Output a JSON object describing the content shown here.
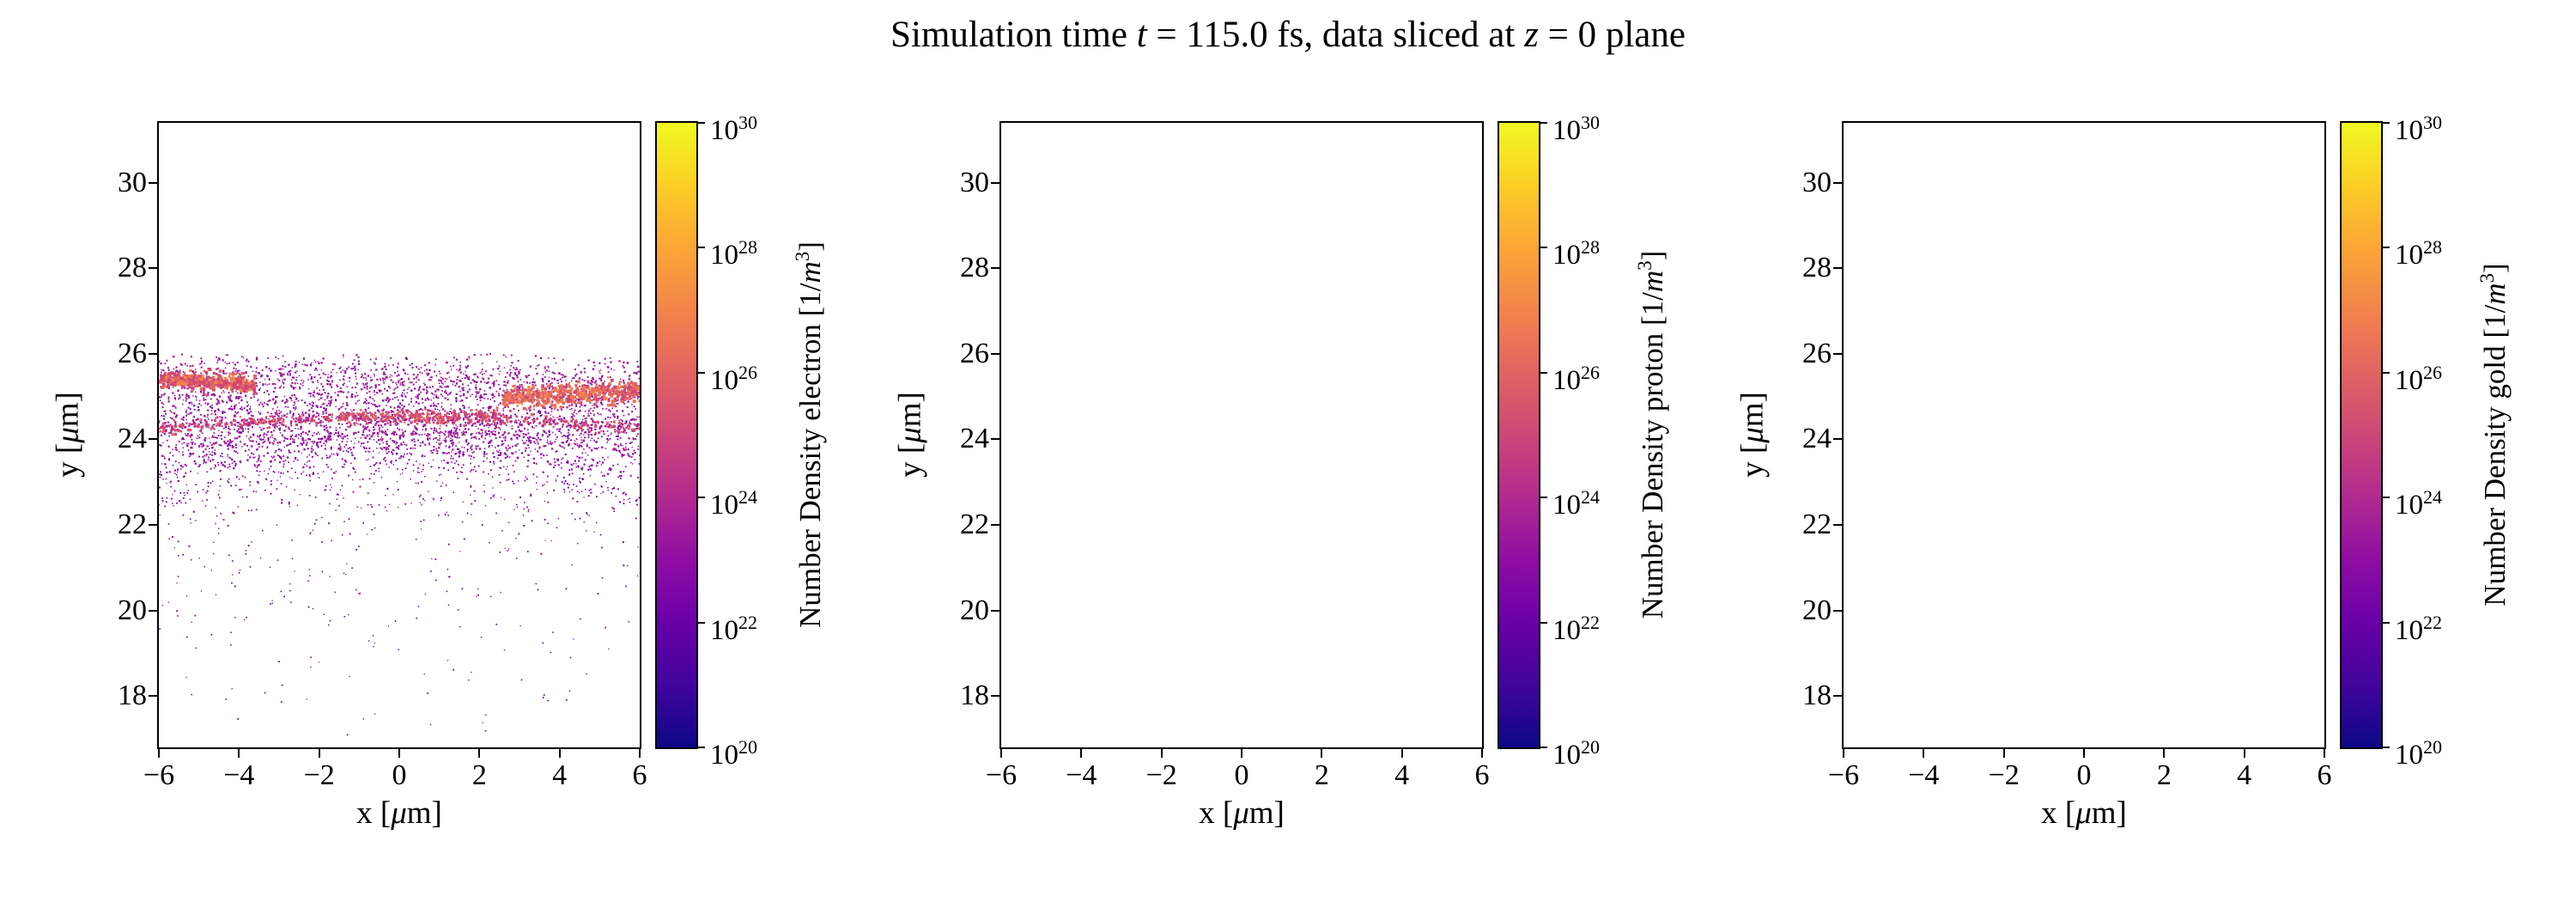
{
  "title": {
    "pre": "Simulation time ",
    "t_var": "t",
    "mid": " = 115.0 fs, data sliced at ",
    "z_var": "z",
    "post": " = 0 plane"
  },
  "chart_data": [
    {
      "type": "scatter",
      "species": "electron",
      "xlabel_parts": {
        "pre": "x [",
        "mu": "μ",
        "post": "m]"
      },
      "ylabel_parts": {
        "pre": "y [",
        "mu": "μ",
        "post": "m]"
      },
      "xlim": [
        -6,
        6
      ],
      "ylim": [
        16.8,
        31.4
      ],
      "xticks": [
        -6,
        -4,
        -2,
        0,
        2,
        4,
        6
      ],
      "yticks": [
        18,
        20,
        22,
        24,
        26,
        28,
        30
      ],
      "grid": false,
      "colorbar": {
        "label_pre": "Number Density electron [1/",
        "label_m": "m",
        "label_sup": "3",
        "label_post": "]",
        "scale": "log",
        "min_exp": 20,
        "max_exp": 30,
        "tick_exps": [
          20,
          22,
          24,
          26,
          28,
          30
        ],
        "colormap": "plasma",
        "stops": [
          {
            "pos": 0.0,
            "color": "#0d0887"
          },
          {
            "pos": 0.1,
            "color": "#41049d"
          },
          {
            "pos": 0.2,
            "color": "#6a00a8"
          },
          {
            "pos": 0.3,
            "color": "#8f0da4"
          },
          {
            "pos": 0.4,
            "color": "#b12a90"
          },
          {
            "pos": 0.5,
            "color": "#cc4778"
          },
          {
            "pos": 0.6,
            "color": "#e16462"
          },
          {
            "pos": 0.7,
            "color": "#f2844b"
          },
          {
            "pos": 0.8,
            "color": "#fca636"
          },
          {
            "pos": 0.9,
            "color": "#fcce25"
          },
          {
            "pos": 1.0,
            "color": "#f0f921"
          }
        ]
      },
      "scatter": {
        "seed": 42,
        "description": "Thin electron density sheet: dense filamentary band y=23.5-26 um across full x range with bright (1e24-1e26) streaks near y=25.3 (x<-3.6), y=25.05 (x>2.6) and y=24.5; sparse purple points (1e20-1e22) scattered down to y=17",
        "bands": [
          {
            "kind": "gauss",
            "count": 2000,
            "xr": [
              -6,
              6
            ],
            "yc": 24.55,
            "ys": 0.5,
            "yclip": [
              23.2,
              26.0
            ],
            "colors": [
              "#7e03a8",
              "#8f0da4",
              "#9c179e",
              "#b12a90"
            ],
            "sz": [
              1.4,
              2.4
            ]
          },
          {
            "kind": "gauss",
            "count": 900,
            "xr": [
              -6,
              6
            ],
            "yc": 25.4,
            "ys": 0.33,
            "yclip": [
              24.9,
              26.0
            ],
            "colors": [
              "#8f0da4",
              "#9c179e",
              "#b12a90"
            ],
            "sz": [
              1.4,
              2.4
            ]
          },
          {
            "kind": "curve",
            "count": 480,
            "xr": [
              -6,
              6
            ],
            "y0": 24.5,
            "a": -0.25,
            "jit": 0.07,
            "colors": [
              "#cc4778",
              "#d6456c",
              "#b12a90",
              "#e16462"
            ],
            "sz": [
              2,
              3.4
            ]
          },
          {
            "kind": "curve",
            "count": 260,
            "xr": [
              -6,
              6
            ],
            "y0": 24.15,
            "a": -0.5,
            "jit": 0.08,
            "colors": [
              "#9c179e",
              "#b12a90",
              "#a62098"
            ],
            "sz": [
              1.5,
              2.5
            ]
          },
          {
            "kind": "curve",
            "count": 220,
            "xr": [
              -6,
              6
            ],
            "y0": 23.8,
            "a": -0.7,
            "jit": 0.1,
            "colors": [
              "#8f0da4",
              "#9c179e"
            ],
            "sz": [
              1.5,
              2.4
            ]
          },
          {
            "kind": "curve",
            "count": 160,
            "xr": [
              -6,
              6
            ],
            "y0": 23.4,
            "a": -0.9,
            "jit": 0.12,
            "colors": [
              "#7e03a8",
              "#8f0da4"
            ],
            "sz": [
              1.4,
              2
            ]
          },
          {
            "kind": "seg",
            "count": 430,
            "xr": [
              -6,
              -3.6
            ],
            "yc": 25.35,
            "ys": 0.09,
            "slope": -0.06,
            "colors": [
              "#e16462",
              "#d6456c",
              "#cc4778",
              "#f2844b"
            ],
            "sz": [
              2.4,
              4
            ]
          },
          {
            "kind": "seg",
            "count": 520,
            "xr": [
              2.6,
              6
            ],
            "yc": 25.05,
            "ys": 0.12,
            "slope": 0.05,
            "colors": [
              "#e16462",
              "#f2844b",
              "#cc4778",
              "#e97158"
            ],
            "sz": [
              2.4,
              4
            ]
          },
          {
            "kind": "seg",
            "count": 200,
            "xr": [
              -1.5,
              2.6
            ],
            "yc": 24.55,
            "ys": 0.07,
            "colors": [
              "#cc4778",
              "#e16462"
            ],
            "sz": [
              2,
              3
            ]
          },
          {
            "kind": "uniform",
            "count": 700,
            "xr": [
              -6,
              6
            ],
            "yr": [
              21.0,
              24.2
            ],
            "bias": 2.2,
            "colors": [
              "#7e03a8",
              "#8f0da4",
              "#6a00a8"
            ],
            "sz": [
              1.2,
              2
            ]
          },
          {
            "kind": "uniform",
            "count": 120,
            "xr": [
              -6,
              6
            ],
            "yr": [
              19.0,
              21.5
            ],
            "bias": 1.5,
            "colors": [
              "#6a00a8",
              "#7e03a8"
            ],
            "sz": [
              1.2,
              1.8
            ]
          },
          {
            "kind": "uniform",
            "count": 40,
            "xr": [
              -5.5,
              5.5
            ],
            "yr": [
              17.0,
              19.2
            ],
            "bias": 1.0,
            "colors": [
              "#6a00a8",
              "#7e03a8"
            ],
            "sz": [
              1.2,
              1.8
            ]
          }
        ]
      }
    },
    {
      "type": "scatter",
      "species": "proton",
      "xlabel_parts": {
        "pre": "x [",
        "mu": "μ",
        "post": "m]"
      },
      "ylabel_parts": {
        "pre": "y [",
        "mu": "μ",
        "post": "m]"
      },
      "xlim": [
        -6,
        6
      ],
      "ylim": [
        16.8,
        31.4
      ],
      "xticks": [
        -6,
        -4,
        -2,
        0,
        2,
        4,
        6
      ],
      "yticks": [
        18,
        20,
        22,
        24,
        26,
        28,
        30
      ],
      "grid": false,
      "colorbar": {
        "label_pre": "Number Density proton [1/",
        "label_m": "m",
        "label_sup": "3",
        "label_post": "]",
        "scale": "log",
        "min_exp": 20,
        "max_exp": 30,
        "tick_exps": [
          20,
          22,
          24,
          26,
          28,
          30
        ],
        "colormap": "plasma",
        "stops": [
          {
            "pos": 0.0,
            "color": "#0d0887"
          },
          {
            "pos": 0.1,
            "color": "#41049d"
          },
          {
            "pos": 0.2,
            "color": "#6a00a8"
          },
          {
            "pos": 0.3,
            "color": "#8f0da4"
          },
          {
            "pos": 0.4,
            "color": "#b12a90"
          },
          {
            "pos": 0.5,
            "color": "#cc4778"
          },
          {
            "pos": 0.6,
            "color": "#e16462"
          },
          {
            "pos": 0.7,
            "color": "#f2844b"
          },
          {
            "pos": 0.8,
            "color": "#fca636"
          },
          {
            "pos": 0.9,
            "color": "#fcce25"
          },
          {
            "pos": 1.0,
            "color": "#f0f921"
          }
        ]
      },
      "scatter": null
    },
    {
      "type": "scatter",
      "species": "gold",
      "xlabel_parts": {
        "pre": "x [",
        "mu": "μ",
        "post": "m]"
      },
      "ylabel_parts": {
        "pre": "y [",
        "mu": "μ",
        "post": "m]"
      },
      "xlim": [
        -6,
        6
      ],
      "ylim": [
        16.8,
        31.4
      ],
      "xticks": [
        -6,
        -4,
        -2,
        0,
        2,
        4,
        6
      ],
      "yticks": [
        18,
        20,
        22,
        24,
        26,
        28,
        30
      ],
      "grid": false,
      "colorbar": {
        "label_pre": "Number Density gold [1/",
        "label_m": "m",
        "label_sup": "3",
        "label_post": "]",
        "scale": "log",
        "min_exp": 20,
        "max_exp": 30,
        "tick_exps": [
          20,
          22,
          24,
          26,
          28,
          30
        ],
        "colormap": "plasma",
        "stops": [
          {
            "pos": 0.0,
            "color": "#0d0887"
          },
          {
            "pos": 0.1,
            "color": "#41049d"
          },
          {
            "pos": 0.2,
            "color": "#6a00a8"
          },
          {
            "pos": 0.3,
            "color": "#8f0da4"
          },
          {
            "pos": 0.4,
            "color": "#b12a90"
          },
          {
            "pos": 0.5,
            "color": "#cc4778"
          },
          {
            "pos": 0.6,
            "color": "#e16462"
          },
          {
            "pos": 0.7,
            "color": "#f2844b"
          },
          {
            "pos": 0.8,
            "color": "#fca636"
          },
          {
            "pos": 0.9,
            "color": "#fcce25"
          },
          {
            "pos": 1.0,
            "color": "#f0f921"
          }
        ]
      },
      "scatter": null
    }
  ]
}
